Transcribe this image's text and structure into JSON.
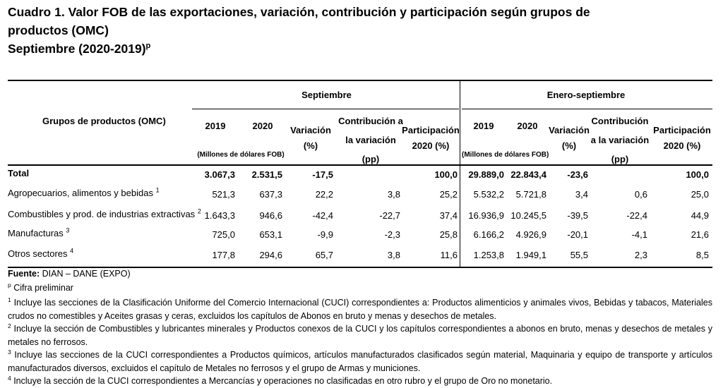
{
  "title": {
    "line1": "Cuadro 1. Valor FOB de las exportaciones, variación, contribución y participación según grupos de",
    "line2": "productos (OMC)",
    "line3": "Septiembre (2020-2019)",
    "line3_sup": "p"
  },
  "table": {
    "col_group_label": "Grupos de productos (OMC)",
    "periods": [
      {
        "label": "Septiembre",
        "y1": "2019",
        "y2": "2020",
        "units": "(Millones de dólares FOB)",
        "variacion": [
          "Variación",
          "(%)"
        ],
        "contribucion": [
          "Contribución a",
          "la variación",
          "(pp)"
        ],
        "participacion": [
          "Participación",
          "2020 (%)"
        ]
      },
      {
        "label": "Enero-septiembre",
        "y1": "2019",
        "y2": "2020",
        "units": "(Millones de dólares FOB)",
        "variacion": [
          "Variación",
          "(%)"
        ],
        "contribucion": [
          "Contribución",
          "a la variación",
          "(pp)"
        ],
        "participacion": [
          "Participación",
          "2020 (%)"
        ]
      }
    ],
    "rows": [
      {
        "label": "Total",
        "sup": "",
        "bold": true,
        "s": [
          "3.067,3",
          "2.531,5",
          "-17,5",
          "",
          "100,0"
        ],
        "e": [
          "29.889,0",
          "22.843,4",
          "-23,6",
          "",
          "100,0"
        ]
      },
      {
        "label": "Agropecuarios, alimentos y bebidas",
        "sup": "1",
        "bold": false,
        "s": [
          "521,3",
          "637,3",
          "22,2",
          "3,8",
          "25,2"
        ],
        "e": [
          "5.532,2",
          "5.721,8",
          "3,4",
          "0,6",
          "25,0"
        ]
      },
      {
        "label": "Combustibles y prod. de industrias extractivas",
        "sup": "2",
        "bold": false,
        "s": [
          "1.643,3",
          "946,6",
          "-42,4",
          "-22,7",
          "37,4"
        ],
        "e": [
          "16.936,9",
          "10.245,5",
          "-39,5",
          "-22,4",
          "44,9"
        ]
      },
      {
        "label": "Manufacturas",
        "sup": "3",
        "bold": false,
        "s": [
          "725,0",
          "653,1",
          "-9,9",
          "-2,3",
          "25,8"
        ],
        "e": [
          "6.166,2",
          "4.926,9",
          "-20,1",
          "-4,1",
          "21,6"
        ]
      },
      {
        "label": "Otros sectores",
        "sup": "4",
        "bold": false,
        "s": [
          "177,8",
          "294,6",
          "65,7",
          "3,8",
          "11,6"
        ],
        "e": [
          "1.253,8",
          "1.949,1",
          "55,5",
          "2,3",
          "8,5"
        ]
      }
    ]
  },
  "footnotes": {
    "source_label": "Fuente:",
    "source_text": " DIAN – DANE (EXPO)",
    "prelim_sup": "p",
    "prelim_text": " Cifra preliminar",
    "notes": [
      {
        "num": "1",
        "text": " Incluye las secciones de la Clasificación Uniforme del Comercio Internacional (CUCI) correspondientes a: Productos alimenticios y animales vivos, Bebidas y tabacos, Materiales crudos no comestibles y Aceites grasas y ceras, excluidos los capítulos de Abonos en bruto y menas y desechos de metales."
      },
      {
        "num": "2",
        "text": " Incluye la sección de Combustibles y lubricantes minerales y Productos conexos de la CUCI y los capítulos correspondientes a abonos en bruto, menas y desechos de metales y metales no ferrosos."
      },
      {
        "num": "3",
        "text": " Incluye las secciones de la CUCI correspondientes a Productos químicos, artículos manufacturados clasificados según material, Maquinaria y equipo de transporte y artículos manufacturados diversos, excluidos el capítulo de Metales no ferrosos y el grupo de Armas y municiones."
      },
      {
        "num": "4",
        "text": " Incluye la sección de la CUCI correspondientes a Mercancías y operaciones no clasificadas en otro rubro y el grupo de Oro no monetario."
      }
    ]
  }
}
